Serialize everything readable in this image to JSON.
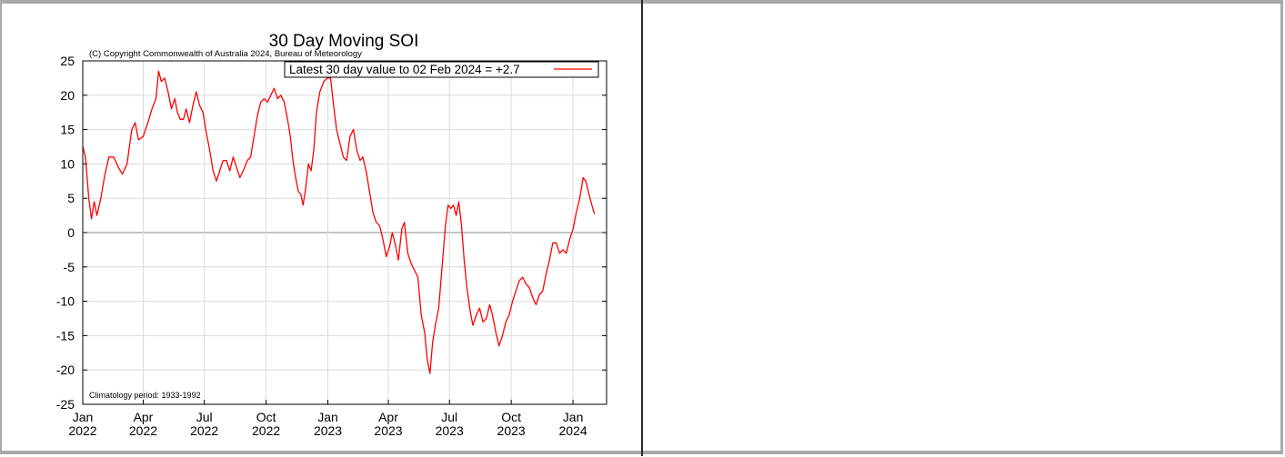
{
  "chart_data": {
    "type": "line",
    "title": "30 Day Moving SOI",
    "subtitle": "(C) Copyright Commonwealth of Australia 2024, Bureau of Meteorology",
    "annotation": "Climatology period: 1933-1992",
    "xlabel": "",
    "ylabel": "",
    "ylim": [
      -25,
      25
    ],
    "xlim": [
      "2022-01-01",
      "2024-02-20"
    ],
    "yticks": [
      "25",
      "20",
      "15",
      "10",
      "5",
      "0",
      "-5",
      "-10",
      "-15",
      "-20",
      "-25"
    ],
    "xticks": [
      {
        "month": "Jan",
        "year": "2022",
        "date": "2022-01-01"
      },
      {
        "month": "Apr",
        "year": "2022",
        "date": "2022-04-01"
      },
      {
        "month": "Jul",
        "year": "2022",
        "date": "2022-07-01"
      },
      {
        "month": "Oct",
        "year": "2022",
        "date": "2022-10-01"
      },
      {
        "month": "Jan",
        "year": "2023",
        "date": "2023-01-01"
      },
      {
        "month": "Apr",
        "year": "2023",
        "date": "2023-04-01"
      },
      {
        "month": "Jul",
        "year": "2023",
        "date": "2023-07-01"
      },
      {
        "month": "Oct",
        "year": "2023",
        "date": "2023-10-01"
      },
      {
        "month": "Jan",
        "year": "2024",
        "date": "2024-01-01"
      }
    ],
    "grid": true,
    "legend_position": "top-right",
    "series": [
      {
        "name": "Latest 30 day value to 02 Feb 2024 = +2.7",
        "color": "#ff0000",
        "points": [
          [
            "2022-01-01",
            12.5
          ],
          [
            "2022-01-05",
            11.0
          ],
          [
            "2022-01-10",
            5.0
          ],
          [
            "2022-01-14",
            2.0
          ],
          [
            "2022-01-18",
            4.5
          ],
          [
            "2022-01-22",
            2.5
          ],
          [
            "2022-01-28",
            5.0
          ],
          [
            "2022-02-03",
            8.5
          ],
          [
            "2022-02-09",
            11.0
          ],
          [
            "2022-02-16",
            11.0
          ],
          [
            "2022-02-23",
            9.5
          ],
          [
            "2022-03-01",
            8.5
          ],
          [
            "2022-03-08",
            10.0
          ],
          [
            "2022-03-15",
            15.0
          ],
          [
            "2022-03-20",
            16.0
          ],
          [
            "2022-03-25",
            13.5
          ],
          [
            "2022-04-01",
            14.0
          ],
          [
            "2022-04-08",
            16.0
          ],
          [
            "2022-04-14",
            18.0
          ],
          [
            "2022-04-20",
            19.5
          ],
          [
            "2022-04-24",
            23.5
          ],
          [
            "2022-04-28",
            22.0
          ],
          [
            "2022-05-03",
            22.5
          ],
          [
            "2022-05-08",
            20.5
          ],
          [
            "2022-05-13",
            18.0
          ],
          [
            "2022-05-18",
            19.5
          ],
          [
            "2022-05-22",
            17.5
          ],
          [
            "2022-05-26",
            16.5
          ],
          [
            "2022-05-31",
            16.5
          ],
          [
            "2022-06-04",
            18.0
          ],
          [
            "2022-06-09",
            16.0
          ],
          [
            "2022-06-14",
            18.5
          ],
          [
            "2022-06-19",
            20.5
          ],
          [
            "2022-06-24",
            18.5
          ],
          [
            "2022-06-29",
            17.5
          ],
          [
            "2022-07-04",
            14.5
          ],
          [
            "2022-07-09",
            12.0
          ],
          [
            "2022-07-14",
            9.0
          ],
          [
            "2022-07-19",
            7.5
          ],
          [
            "2022-07-24",
            9.0
          ],
          [
            "2022-07-29",
            10.5
          ],
          [
            "2022-08-03",
            10.5
          ],
          [
            "2022-08-08",
            9.0
          ],
          [
            "2022-08-13",
            11.0
          ],
          [
            "2022-08-18",
            9.5
          ],
          [
            "2022-08-23",
            8.0
          ],
          [
            "2022-08-28",
            9.0
          ],
          [
            "2022-09-03",
            10.5
          ],
          [
            "2022-09-08",
            11.0
          ],
          [
            "2022-09-13",
            14.0
          ],
          [
            "2022-09-18",
            17.0
          ],
          [
            "2022-09-23",
            19.0
          ],
          [
            "2022-09-28",
            19.5
          ],
          [
            "2022-10-03",
            19.0
          ],
          [
            "2022-10-08",
            20.0
          ],
          [
            "2022-10-13",
            21.0
          ],
          [
            "2022-10-18",
            19.5
          ],
          [
            "2022-10-23",
            20.0
          ],
          [
            "2022-10-28",
            19.0
          ],
          [
            "2022-11-02",
            16.5
          ],
          [
            "2022-11-06",
            14.0
          ],
          [
            "2022-11-10",
            10.5
          ],
          [
            "2022-11-14",
            8.0
          ],
          [
            "2022-11-18",
            6.0
          ],
          [
            "2022-11-22",
            5.5
          ],
          [
            "2022-11-25",
            4.0
          ],
          [
            "2022-11-29",
            6.5
          ],
          [
            "2022-12-03",
            10.0
          ],
          [
            "2022-12-07",
            9.0
          ],
          [
            "2022-12-11",
            12.0
          ],
          [
            "2022-12-15",
            17.5
          ],
          [
            "2022-12-20",
            20.5
          ],
          [
            "2022-12-26",
            22.0
          ],
          [
            "2022-12-31",
            22.5
          ],
          [
            "2023-01-05",
            22.5
          ],
          [
            "2023-01-09",
            19.0
          ],
          [
            "2023-01-14",
            15.0
          ],
          [
            "2023-01-19",
            13.0
          ],
          [
            "2023-01-24",
            11.0
          ],
          [
            "2023-01-29",
            10.5
          ],
          [
            "2023-02-03",
            14.0
          ],
          [
            "2023-02-08",
            15.0
          ],
          [
            "2023-02-13",
            12.0
          ],
          [
            "2023-02-18",
            10.5
          ],
          [
            "2023-02-22",
            11.0
          ],
          [
            "2023-02-27",
            9.0
          ],
          [
            "2023-03-04",
            6.0
          ],
          [
            "2023-03-09",
            3.0
          ],
          [
            "2023-03-14",
            1.5
          ],
          [
            "2023-03-19",
            1.0
          ],
          [
            "2023-03-24",
            -1.0
          ],
          [
            "2023-03-29",
            -3.5
          ],
          [
            "2023-04-03",
            -2.0
          ],
          [
            "2023-04-07",
            0.0
          ],
          [
            "2023-04-12",
            -2.0
          ],
          [
            "2023-04-16",
            -4.0
          ],
          [
            "2023-04-21",
            0.5
          ],
          [
            "2023-04-25",
            1.5
          ],
          [
            "2023-04-30",
            -3.0
          ],
          [
            "2023-05-05",
            -4.5
          ],
          [
            "2023-05-10",
            -5.5
          ],
          [
            "2023-05-15",
            -6.5
          ],
          [
            "2023-05-20",
            -12.0
          ],
          [
            "2023-05-25",
            -14.5
          ],
          [
            "2023-05-29",
            -18.5
          ],
          [
            "2023-06-02",
            -20.5
          ],
          [
            "2023-06-06",
            -16.0
          ],
          [
            "2023-06-10",
            -13.5
          ],
          [
            "2023-06-15",
            -11.0
          ],
          [
            "2023-06-20",
            -5.0
          ],
          [
            "2023-06-25",
            1.0
          ],
          [
            "2023-06-29",
            4.0
          ],
          [
            "2023-07-03",
            3.5
          ],
          [
            "2023-07-07",
            4.0
          ],
          [
            "2023-07-11",
            2.5
          ],
          [
            "2023-07-15",
            4.5
          ],
          [
            "2023-07-19",
            1.0
          ],
          [
            "2023-07-23",
            -4.0
          ],
          [
            "2023-07-27",
            -8.0
          ],
          [
            "2023-08-01",
            -11.5
          ],
          [
            "2023-08-05",
            -13.5
          ],
          [
            "2023-08-10",
            -12.0
          ],
          [
            "2023-08-15",
            -11.0
          ],
          [
            "2023-08-20",
            -13.0
          ],
          [
            "2023-08-25",
            -12.5
          ],
          [
            "2023-08-30",
            -10.5
          ],
          [
            "2023-09-03",
            -12.0
          ],
          [
            "2023-09-08",
            -14.5
          ],
          [
            "2023-09-13",
            -16.5
          ],
          [
            "2023-09-18",
            -15.0
          ],
          [
            "2023-09-23",
            -13.0
          ],
          [
            "2023-09-28",
            -12.0
          ],
          [
            "2023-10-03",
            -10.0
          ],
          [
            "2023-10-08",
            -8.5
          ],
          [
            "2023-10-13",
            -7.0
          ],
          [
            "2023-10-18",
            -6.5
          ],
          [
            "2023-10-23",
            -7.5
          ],
          [
            "2023-10-28",
            -8.0
          ],
          [
            "2023-11-02",
            -9.5
          ],
          [
            "2023-11-07",
            -10.5
          ],
          [
            "2023-11-12",
            -9.0
          ],
          [
            "2023-11-17",
            -8.5
          ],
          [
            "2023-11-22",
            -6.0
          ],
          [
            "2023-11-27",
            -4.0
          ],
          [
            "2023-12-02",
            -1.5
          ],
          [
            "2023-12-07",
            -1.5
          ],
          [
            "2023-12-12",
            -3.0
          ],
          [
            "2023-12-17",
            -2.5
          ],
          [
            "2023-12-22",
            -3.0
          ],
          [
            "2023-12-27",
            -1.0
          ],
          [
            "2024-01-01",
            0.5
          ],
          [
            "2024-01-06",
            3.0
          ],
          [
            "2024-01-11",
            5.0
          ],
          [
            "2024-01-16",
            8.0
          ],
          [
            "2024-01-20",
            7.5
          ],
          [
            "2024-01-25",
            5.5
          ],
          [
            "2024-01-29",
            4.0
          ],
          [
            "2024-02-02",
            2.7
          ]
        ]
      }
    ]
  }
}
